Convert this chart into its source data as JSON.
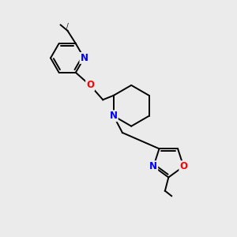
{
  "background_color": "#ebebeb",
  "bond_color": "#000000",
  "atom_colors": {
    "N": "#0000ff",
    "O": "#ff0000",
    "C": "#000000"
  },
  "font_size_atoms": 8.5,
  "figsize": [
    3.0,
    3.0
  ],
  "dpi": 100
}
